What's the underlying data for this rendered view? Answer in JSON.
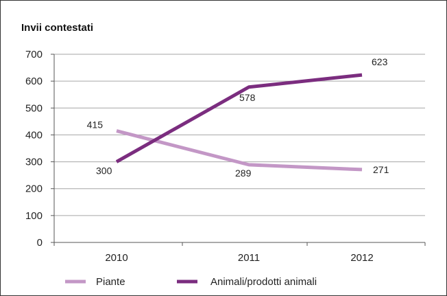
{
  "chart_data": {
    "type": "line",
    "title": "Invii contestati",
    "xlabel": "",
    "ylabel": "",
    "categories": [
      "2010",
      "2011",
      "2012"
    ],
    "ylim": [
      0,
      700
    ],
    "yticks": [
      0,
      100,
      200,
      300,
      400,
      500,
      600,
      700
    ],
    "grid": true,
    "legend_position": "bottom",
    "series": [
      {
        "name": "Piante",
        "values": [
          415,
          289,
          271
        ],
        "color": "#c397c6"
      },
      {
        "name": "Animali/prodotti animali",
        "values": [
          300,
          578,
          623
        ],
        "color": "#7b2d7f"
      }
    ]
  }
}
